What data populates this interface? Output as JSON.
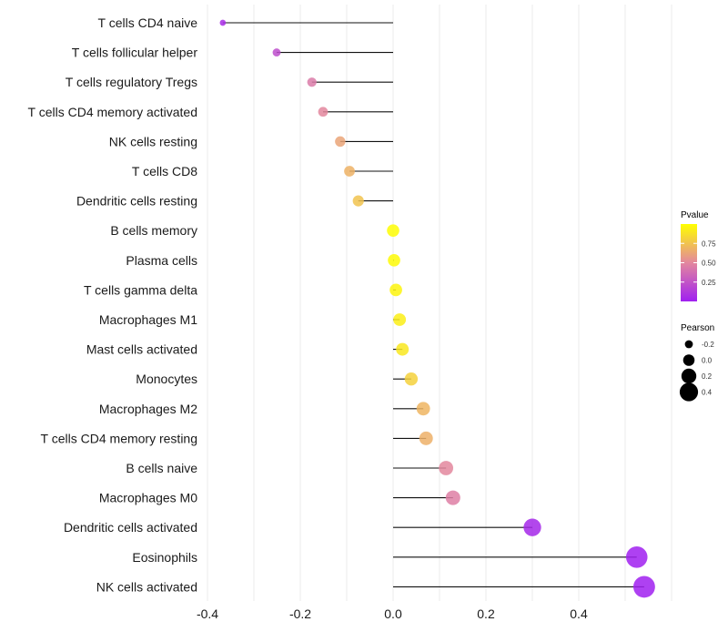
{
  "chart_data": {
    "type": "lollipop",
    "title": "",
    "xlabel": "",
    "ylabel": "",
    "xlim": [
      -0.4,
      0.55
    ],
    "x_ticks": [
      -0.4,
      -0.2,
      0.0,
      0.2,
      0.4
    ],
    "x_tick_labels": [
      "-0.4",
      "-0.2",
      "0.0",
      "0.2",
      "0.4"
    ],
    "grid": true,
    "categories": [
      "T cells CD4 naive",
      "T cells follicular helper",
      "T cells regulatory  Tregs ",
      "T cells CD4 memory activated",
      "NK cells resting",
      "T cells CD8",
      "Dendritic cells resting",
      "B cells memory",
      "Plasma cells",
      "T cells gamma delta",
      "Macrophages M1",
      "Mast cells activated",
      "Monocytes",
      "Macrophages M2",
      "T cells CD4 memory resting",
      "B cells naive",
      "Macrophages M0",
      "Dendritic cells activated",
      "Eosinophils",
      "NK cells activated"
    ],
    "pearson": [
      -0.367,
      -0.251,
      -0.175,
      -0.151,
      -0.114,
      -0.094,
      -0.075,
      0.0,
      0.002,
      0.006,
      0.014,
      0.02,
      0.039,
      0.065,
      0.071,
      0.114,
      0.129,
      0.3,
      0.525,
      0.541
    ],
    "pvalue": [
      0.06,
      0.22,
      0.44,
      0.5,
      0.62,
      0.68,
      0.75,
      0.99,
      0.98,
      0.96,
      0.93,
      0.9,
      0.81,
      0.69,
      0.67,
      0.5,
      0.46,
      0.04,
      0.001,
      0.001
    ],
    "legend": {
      "color": {
        "title": "Pvalue",
        "ticks": [
          0.25,
          0.5,
          0.75
        ],
        "tick_labels": [
          "0.25",
          "0.50",
          "0.75"
        ],
        "range": [
          0.0,
          1.0
        ],
        "low_color": "#A020F0",
        "mid_color": "#E3879E",
        "high_color": "#FFFF00"
      },
      "size": {
        "title": "Pearson",
        "values": [
          -0.2,
          0.0,
          0.2,
          0.4
        ],
        "labels": [
          "-0.2",
          "0.0",
          "0.2",
          "0.4"
        ]
      },
      "placement": "right"
    }
  }
}
